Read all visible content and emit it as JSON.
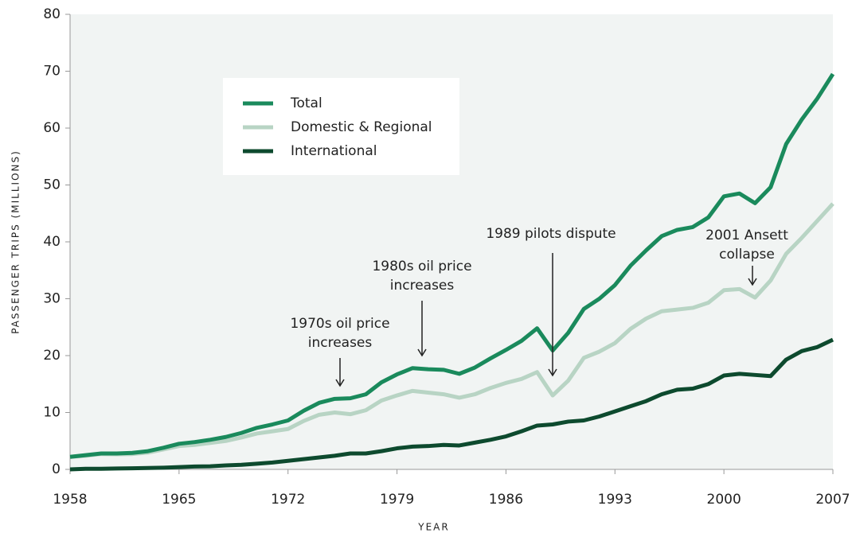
{
  "chart_data": {
    "type": "line",
    "ylabel": "PASSENGER TRIPS (MILLIONS)",
    "xlabel": "YEAR",
    "x": [
      1958,
      1959,
      1960,
      1961,
      1962,
      1963,
      1964,
      1965,
      1966,
      1967,
      1968,
      1969,
      1970,
      1971,
      1972,
      1973,
      1974,
      1975,
      1976,
      1977,
      1978,
      1979,
      1980,
      1981,
      1982,
      1983,
      1984,
      1985,
      1986,
      1987,
      1988,
      1989,
      1990,
      1991,
      1992,
      1993,
      1994,
      1995,
      1996,
      1997,
      1998,
      1999,
      2000,
      2001,
      2002,
      2003,
      2004,
      2005,
      2006,
      2007
    ],
    "series": [
      {
        "name": "Total",
        "color": "#1a8a5c",
        "values": [
          2.2,
          2.5,
          2.8,
          2.8,
          2.9,
          3.2,
          3.8,
          4.5,
          4.8,
          5.2,
          5.7,
          6.4,
          7.3,
          7.9,
          8.6,
          10.3,
          11.7,
          12.4,
          12.5,
          13.2,
          15.3,
          16.7,
          17.8,
          17.6,
          17.5,
          16.8,
          17.9,
          19.5,
          21.0,
          22.6,
          24.8,
          20.9,
          24.0,
          28.2,
          30.0,
          32.4,
          35.8,
          38.5,
          41.0,
          42.1,
          42.6,
          44.3,
          48.0,
          48.5,
          46.8,
          49.6,
          57.2,
          61.5,
          65.2,
          69.5
        ]
      },
      {
        "name": "Domestic & Regional",
        "color": "#b8d4c4",
        "values": [
          2.2,
          2.4,
          2.7,
          2.65,
          2.7,
          2.95,
          3.5,
          4.1,
          4.3,
          4.65,
          5.0,
          5.6,
          6.3,
          6.7,
          7.1,
          8.5,
          9.6,
          10.0,
          9.7,
          10.4,
          12.1,
          13.0,
          13.8,
          13.5,
          13.2,
          12.6,
          13.2,
          14.3,
          15.2,
          15.9,
          17.1,
          13.0,
          15.6,
          19.6,
          20.7,
          22.2,
          24.7,
          26.5,
          27.8,
          28.1,
          28.4,
          29.3,
          31.5,
          31.7,
          30.2,
          33.2,
          37.9,
          40.7,
          43.7,
          46.7
        ]
      },
      {
        "name": "International",
        "color": "#0d4a2e",
        "values": [
          0.0,
          0.1,
          0.1,
          0.15,
          0.2,
          0.25,
          0.3,
          0.4,
          0.5,
          0.55,
          0.7,
          0.8,
          1.0,
          1.2,
          1.5,
          1.8,
          2.1,
          2.4,
          2.8,
          2.8,
          3.2,
          3.7,
          4.0,
          4.1,
          4.3,
          4.2,
          4.7,
          5.2,
          5.8,
          6.7,
          7.7,
          7.9,
          8.4,
          8.6,
          9.3,
          10.2,
          11.1,
          12.0,
          13.2,
          14.0,
          14.2,
          15.0,
          16.5,
          16.8,
          16.6,
          16.4,
          19.3,
          20.8,
          21.5,
          22.8
        ]
      }
    ],
    "xlim": [
      1958,
      2007
    ],
    "xticks": [
      1958,
      1965,
      1972,
      1979,
      1986,
      1993,
      2000,
      2007
    ],
    "ylim": [
      0,
      80
    ],
    "yticks": [
      0,
      10,
      20,
      30,
      40,
      50,
      60,
      70,
      80
    ],
    "annotations": [
      {
        "lines": [
          "1970s oil price",
          "increases"
        ]
      },
      {
        "lines": [
          "1980s oil price",
          "increases"
        ]
      },
      {
        "lines": [
          "1989 pilots dispute"
        ]
      },
      {
        "lines": [
          "2001 Ansett",
          "collapse"
        ]
      }
    ]
  }
}
